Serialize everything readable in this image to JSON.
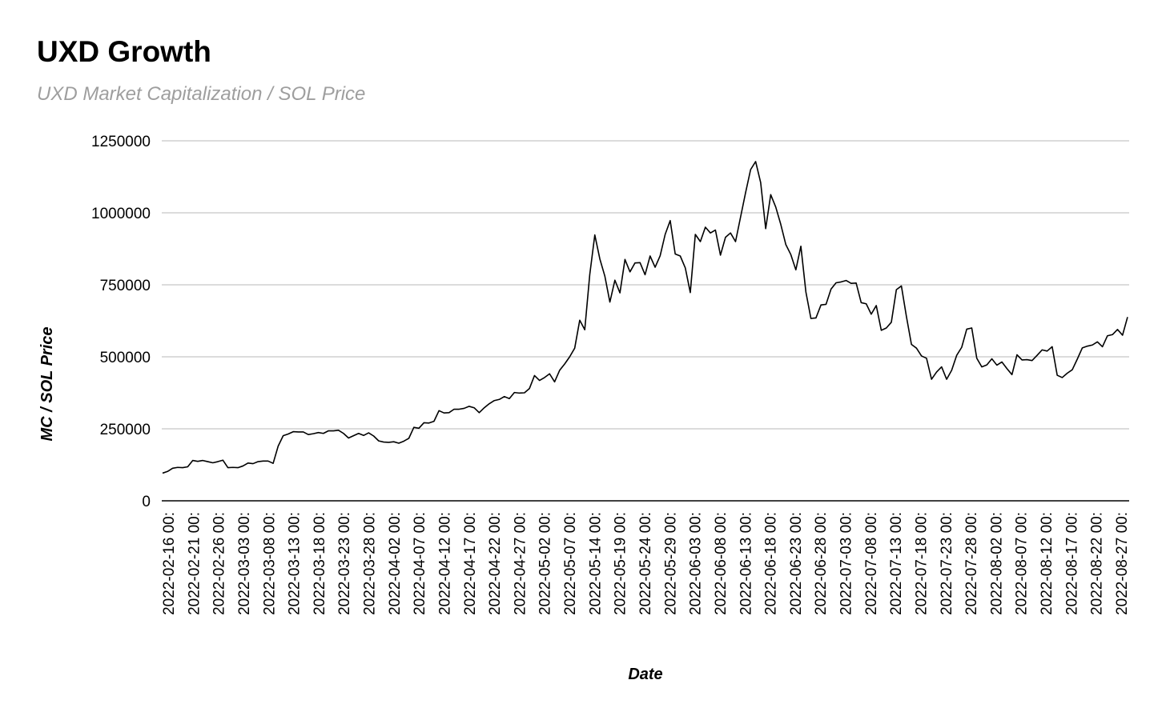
{
  "header": {
    "title": "UXD Growth",
    "subtitle": "UXD Market Capitalization  / SOL Price"
  },
  "chart_data": {
    "type": "line",
    "title": "UXD Growth",
    "subtitle": "UXD Market Capitalization  / SOL Price",
    "xlabel": "Date",
    "ylabel": "MC / SOL Price",
    "ylim": [
      0,
      1250000
    ],
    "y_ticks": [
      0,
      250000,
      500000,
      750000,
      1000000,
      1250000
    ],
    "y_tick_labels": [
      "0",
      "250000",
      "500000",
      "750000",
      "1000000",
      "1250000"
    ],
    "x_tick_labels": [
      "2022-02-16 00:",
      "2022-02-21 00:",
      "2022-02-26 00:",
      "2022-03-03 00:",
      "2022-03-08 00:",
      "2022-03-13 00:",
      "2022-03-18 00:",
      "2022-03-23 00:",
      "2022-03-28 00:",
      "2022-04-02 00:",
      "2022-04-07 00:",
      "2022-04-12 00:",
      "2022-04-17 00:",
      "2022-04-22 00:",
      "2022-04-27 00:",
      "2022-05-02 00:",
      "2022-05-07 00:",
      "2022-05-14 00:",
      "2022-05-19 00:",
      "2022-05-24 00:",
      "2022-05-29 00:",
      "2022-06-03 00:",
      "2022-06-08 00:",
      "2022-06-13 00:",
      "2022-06-18 00:",
      "2022-06-23 00:",
      "2022-06-28 00:",
      "2022-07-03 00:",
      "2022-07-08 00:",
      "2022-07-13 00:",
      "2022-07-18 00:",
      "2022-07-23 00:",
      "2022-07-28 00:",
      "2022-08-02 00:",
      "2022-08-07 00:",
      "2022-08-12 00:",
      "2022-08-17 00:",
      "2022-08-22 00:",
      "2022-08-27 00:"
    ],
    "grid": true,
    "line_color": "#000000",
    "grid_color": "#c7c7c7",
    "values": [
      96000,
      102000,
      113000,
      116000,
      115000,
      118000,
      140000,
      137000,
      140000,
      136000,
      132000,
      136000,
      141000,
      115000,
      116000,
      115000,
      121000,
      131000,
      129000,
      136000,
      138000,
      138000,
      130000,
      190000,
      226000,
      232000,
      240000,
      239000,
      239000,
      230000,
      233000,
      237000,
      234000,
      243000,
      243000,
      245000,
      234000,
      218000,
      226000,
      234000,
      227000,
      236000,
      225000,
      208000,
      204000,
      203000,
      205000,
      200000,
      207000,
      217000,
      255000,
      252000,
      271000,
      270000,
      276000,
      313000,
      305000,
      306000,
      318000,
      318000,
      321000,
      328000,
      323000,
      306000,
      323000,
      337000,
      348000,
      352000,
      362000,
      355000,
      376000,
      374000,
      375000,
      390000,
      435000,
      418000,
      428000,
      441000,
      413000,
      453000,
      475000,
      500000,
      530000,
      627000,
      594000,
      786000,
      923000,
      840000,
      780000,
      690000,
      766000,
      722000,
      838000,
      795000,
      826000,
      827000,
      785000,
      850000,
      811000,
      851000,
      925000,
      973000,
      857000,
      850000,
      809000,
      723000,
      925000,
      900000,
      950000,
      930000,
      940000,
      853000,
      915000,
      930000,
      900000,
      985000,
      1070000,
      1150000,
      1178000,
      1105000,
      945000,
      1063000,
      1020000,
      960000,
      890000,
      855000,
      802000,
      884000,
      725000,
      633000,
      635000,
      680000,
      682000,
      735000,
      757000,
      760000,
      765000,
      755000,
      756000,
      688000,
      684000,
      648000,
      678000,
      592000,
      600000,
      620000,
      733000,
      746000,
      640000,
      543000,
      530000,
      503000,
      495000,
      422000,
      447000,
      465000,
      422000,
      453000,
      505000,
      533000,
      596000,
      600000,
      495000,
      465000,
      472000,
      493000,
      471000,
      482000,
      459000,
      438000,
      507000,
      489000,
      490000,
      487000,
      505000,
      524000,
      520000,
      535000,
      436000,
      428000,
      443000,
      455000,
      492000,
      531000,
      537000,
      541000,
      552000,
      535000,
      573000,
      577000,
      595000,
      575000,
      638000
    ]
  }
}
